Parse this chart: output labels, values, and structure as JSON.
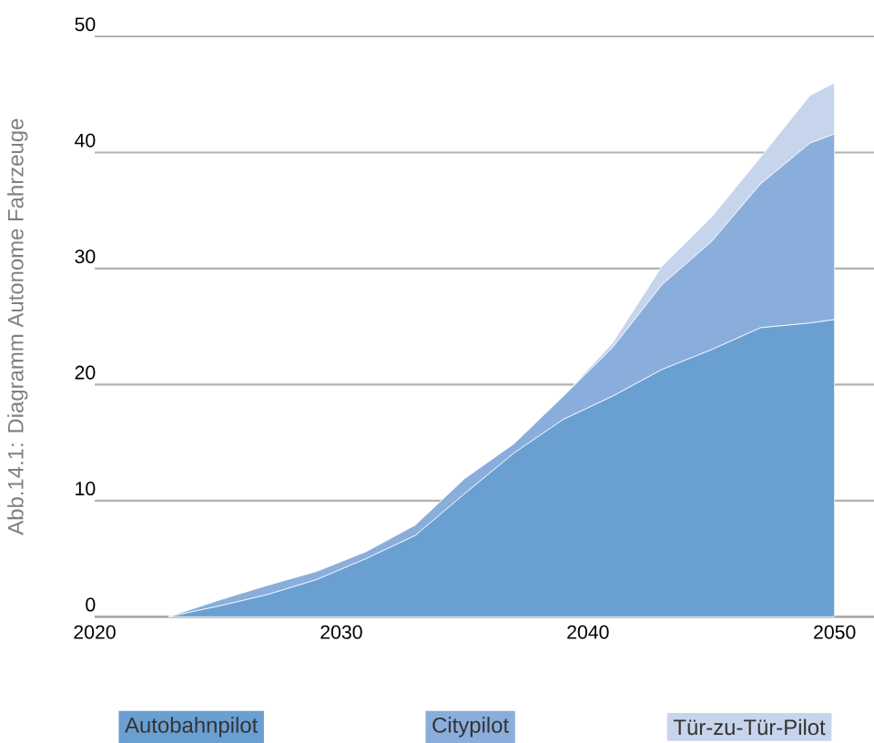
{
  "chart_data": {
    "type": "area",
    "stacked": true,
    "ylabel": "Abb.14.1: Diagramm Autonome Fahrzeuge",
    "x": [
      2023,
      2025,
      2027,
      2029,
      2031,
      2033,
      2035,
      2037,
      2039,
      2041,
      2043,
      2045,
      2047,
      2049,
      2050
    ],
    "series": [
      {
        "name": "Autobahnpilot",
        "color": "#6a9fd2",
        "values": [
          0,
          0.9,
          1.9,
          3.2,
          5.0,
          7.0,
          10.6,
          14.1,
          17.0,
          19.0,
          21.3,
          23.0,
          24.9,
          25.3,
          25.6
        ]
      },
      {
        "name": "Citypilot",
        "color": "#8aaedb",
        "values": [
          0,
          0.5,
          0.8,
          0.7,
          0.6,
          0.9,
          1.3,
          0.8,
          2.0,
          4.2,
          7.3,
          9.3,
          12.4,
          15.5,
          16.0
        ]
      },
      {
        "name": "Tür-zu-Tür-Pilot",
        "color": "#c7d5ec",
        "values": [
          0,
          0,
          0,
          0,
          0,
          0,
          0,
          0,
          0,
          0.4,
          1.6,
          2.1,
          2.3,
          4.1,
          4.4
        ]
      }
    ],
    "xlim": [
      2020,
      2051.6
    ],
    "ylim": [
      0,
      50
    ],
    "xticks": [
      2020,
      2030,
      2040,
      2050
    ],
    "yticks": [
      0,
      10,
      20,
      30,
      40,
      50
    ],
    "grid": "y",
    "legend": "bottom"
  }
}
